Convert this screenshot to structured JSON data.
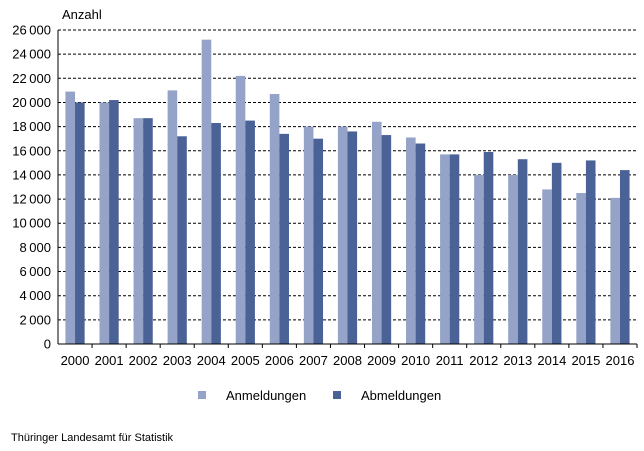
{
  "chart_data": {
    "type": "bar",
    "title": "",
    "ylabel": "Anzahl",
    "xlabel": "",
    "ylim": [
      0,
      26000
    ],
    "ytick_step": 2000,
    "grid": true,
    "legend_position": "bottom",
    "categories": [
      "2000",
      "2001",
      "2002",
      "2003",
      "2004",
      "2005",
      "2006",
      "2007",
      "2008",
      "2009",
      "2010",
      "2011",
      "2012",
      "2013",
      "2014",
      "2015",
      "2016"
    ],
    "series": [
      {
        "name": "Anmeldungen",
        "color": "#95a3c8",
        "values": [
          20900,
          20000,
          18700,
          21000,
          25200,
          22200,
          20700,
          18000,
          18000,
          18400,
          17100,
          15700,
          14000,
          14000,
          12800,
          12500,
          12100
        ]
      },
      {
        "name": "Abmeldungen",
        "color": "#4a6296",
        "values": [
          20000,
          20200,
          18700,
          17200,
          18300,
          18500,
          17400,
          17000,
          17600,
          17300,
          16600,
          15700,
          15900,
          15300,
          15000,
          15200,
          14400
        ]
      }
    ]
  },
  "source": "Thüringer Landesamt für Statistik"
}
